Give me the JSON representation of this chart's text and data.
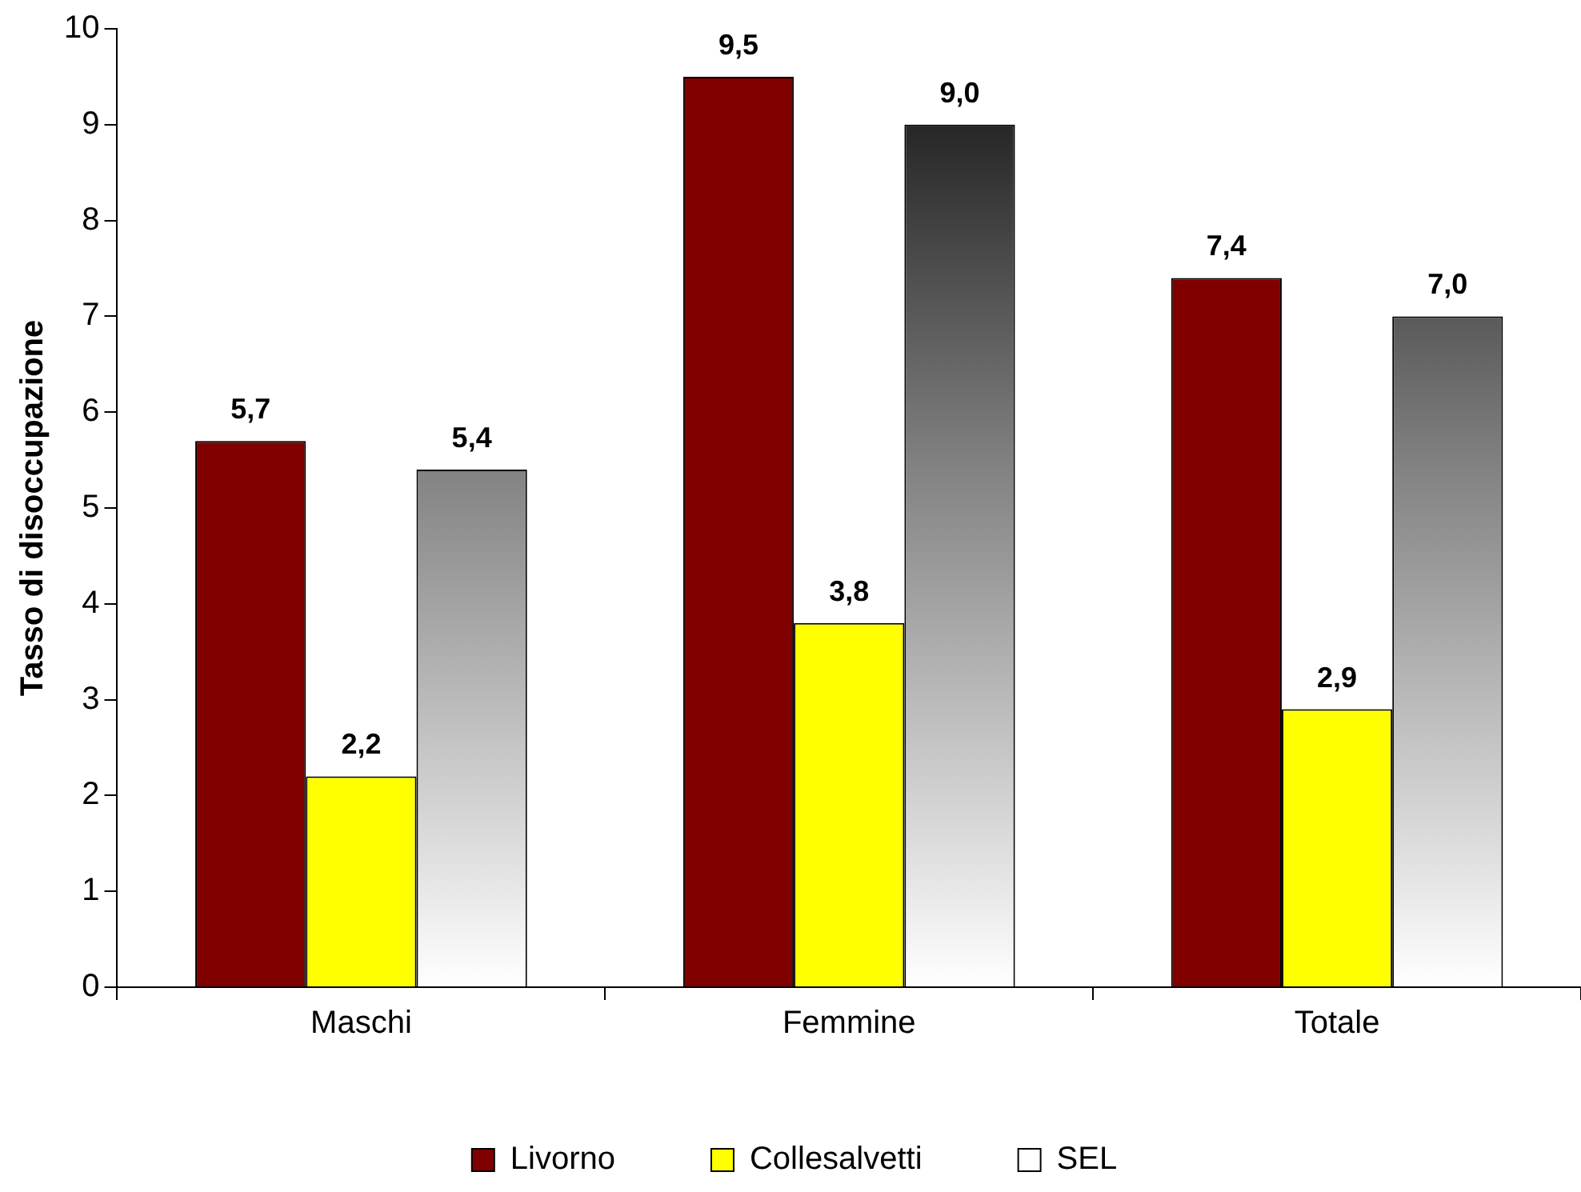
{
  "chart_data": {
    "type": "bar",
    "ylabel": "Tasso di disoccupazione",
    "categories": [
      "Maschi",
      "Femmine",
      "Totale"
    ],
    "series": [
      {
        "name": "Livorno",
        "color": "#800000",
        "values": [
          5.7,
          9.5,
          7.4
        ],
        "value_labels": [
          "5,7",
          "9,5",
          "7,4"
        ]
      },
      {
        "name": "Collesalvetti",
        "color": "#ffff00",
        "values": [
          2.2,
          3.8,
          2.9
        ],
        "value_labels": [
          "2,2",
          "3,8",
          "2,9"
        ]
      },
      {
        "name": "SEL",
        "color": "#808080",
        "values": [
          5.4,
          9.0,
          7.0
        ],
        "value_labels": [
          "5,4",
          "9,0",
          "7,0"
        ]
      }
    ],
    "ylim": [
      0,
      10
    ],
    "yticks": [
      0,
      1,
      2,
      3,
      4,
      5,
      6,
      7,
      8,
      9,
      10
    ],
    "grid": false,
    "legend": "bottom"
  }
}
